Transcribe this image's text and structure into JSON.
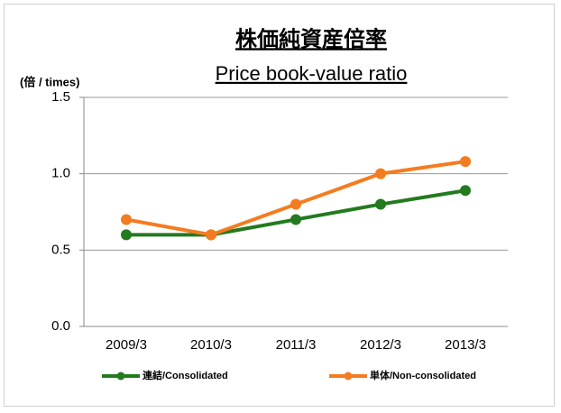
{
  "chart_data": {
    "type": "line",
    "title": "株価純資産倍率",
    "subtitle": "Price book-value ratio",
    "y_label": "(倍 / times)",
    "categories": [
      "2009/3",
      "2010/3",
      "2011/3",
      "2012/3",
      "2013/3"
    ],
    "series": [
      {
        "name": "連結/Consolidated",
        "color": "#237a1f",
        "values": [
          0.6,
          0.6,
          0.7,
          0.8,
          0.89
        ]
      },
      {
        "name": "単体/Non-consolidated",
        "color": "#f47c20",
        "values": [
          0.7,
          0.6,
          0.8,
          1.0,
          1.08
        ]
      }
    ],
    "ylim": [
      0,
      1.5
    ],
    "yticks": [
      {
        "value": 0,
        "label": "0.0"
      },
      0.5,
      {
        "value": 1,
        "label": "1.0"
      },
      1.5
    ],
    "grid": true,
    "legend": "bottom"
  }
}
